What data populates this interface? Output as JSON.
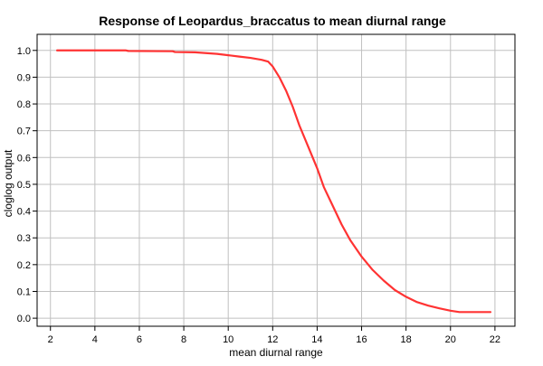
{
  "chart_data": {
    "type": "line",
    "title": "Response of Leopardus_braccatus to mean diurnal range",
    "xlabel": "mean diurnal range",
    "ylabel": "cloglog output",
    "xlim": [
      1.4,
      22.9
    ],
    "ylim": [
      -0.03,
      1.06
    ],
    "xticks": [
      2,
      4,
      6,
      8,
      10,
      12,
      14,
      16,
      18,
      20,
      22
    ],
    "yticks": [
      0.0,
      0.1,
      0.2,
      0.3,
      0.4,
      0.5,
      0.6,
      0.7,
      0.8,
      0.9,
      1.0
    ],
    "ytick_labels": [
      "0.0",
      "0.1",
      "0.2",
      "0.3",
      "0.4",
      "0.5",
      "0.6",
      "0.7",
      "0.8",
      "0.9",
      "1.0"
    ],
    "grid": true,
    "series": [
      {
        "color": "#ff3333",
        "points": [
          [
            2.3,
            1.0
          ],
          [
            4.0,
            1.0
          ],
          [
            5.4,
            1.0
          ],
          [
            5.5,
            0.998
          ],
          [
            7.5,
            0.997
          ],
          [
            7.6,
            0.994
          ],
          [
            8.5,
            0.993
          ],
          [
            9.0,
            0.99
          ],
          [
            9.5,
            0.987
          ],
          [
            10.0,
            0.982
          ],
          [
            10.5,
            0.977
          ],
          [
            11.0,
            0.972
          ],
          [
            11.5,
            0.965
          ],
          [
            11.8,
            0.958
          ],
          [
            12.0,
            0.94
          ],
          [
            12.3,
            0.9
          ],
          [
            12.6,
            0.85
          ],
          [
            12.9,
            0.79
          ],
          [
            13.2,
            0.72
          ],
          [
            13.6,
            0.64
          ],
          [
            14.0,
            0.56
          ],
          [
            14.3,
            0.49
          ],
          [
            14.7,
            0.42
          ],
          [
            15.1,
            0.35
          ],
          [
            15.5,
            0.29
          ],
          [
            16.0,
            0.23
          ],
          [
            16.5,
            0.18
          ],
          [
            17.0,
            0.14
          ],
          [
            17.5,
            0.105
          ],
          [
            18.0,
            0.08
          ],
          [
            18.5,
            0.06
          ],
          [
            19.0,
            0.047
          ],
          [
            19.5,
            0.037
          ],
          [
            20.0,
            0.028
          ],
          [
            20.4,
            0.023
          ],
          [
            21.8,
            0.023
          ]
        ]
      }
    ]
  }
}
